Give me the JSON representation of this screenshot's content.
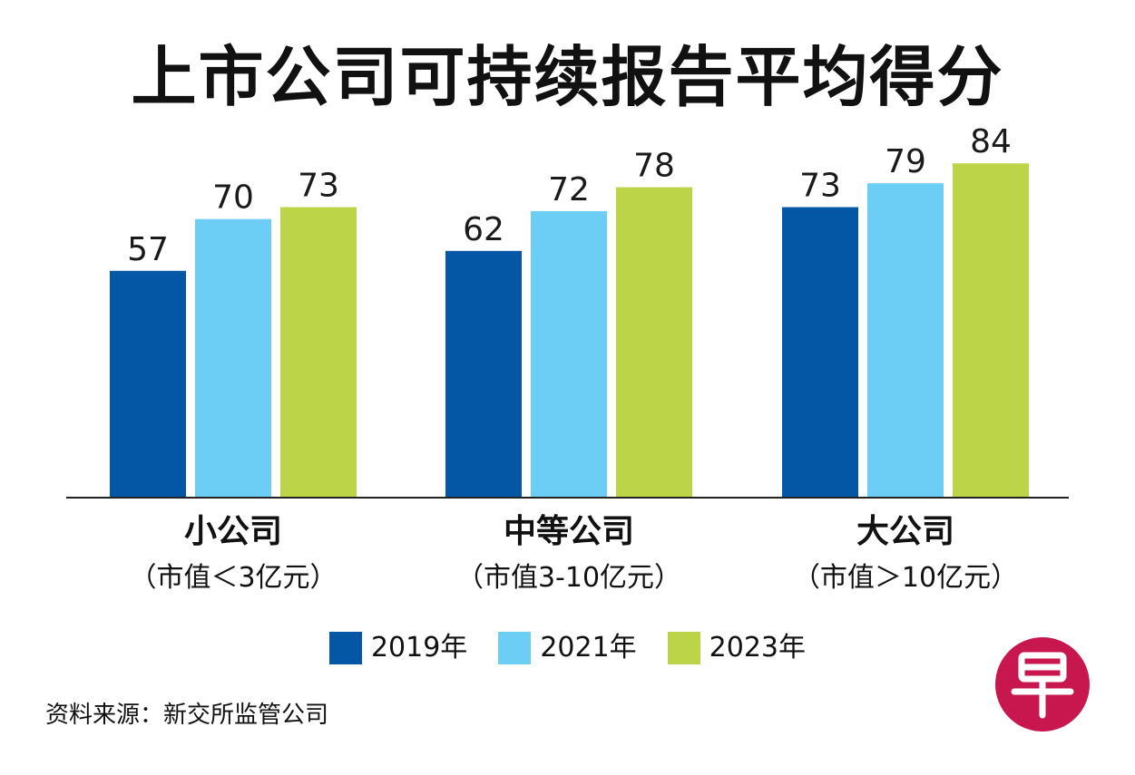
{
  "chart_data": {
    "type": "bar",
    "title": "上市公司可持续报告平均得分",
    "categories": [
      "小公司",
      "中等公司",
      "大公司"
    ],
    "category_subtitles": [
      "（市值＜3亿元）",
      "（市值3-10亿元）",
      "（市值＞10亿元）"
    ],
    "series": [
      {
        "name": "2019年",
        "color": "#0457a4",
        "values": [
          57,
          62,
          73
        ]
      },
      {
        "name": "2021年",
        "color": "#6dcef5",
        "values": [
          70,
          72,
          79
        ]
      },
      {
        "name": "2023年",
        "color": "#bcd448",
        "values": [
          73,
          78,
          84
        ]
      }
    ],
    "ylim": [
      0,
      100
    ],
    "xlabel": "",
    "ylabel": "",
    "grid": false,
    "legend_position": "bottom"
  },
  "source": "资料来源：新交所监管公司",
  "logo": {
    "name": "zaobao-logo-icon",
    "color": "#c8174e"
  }
}
